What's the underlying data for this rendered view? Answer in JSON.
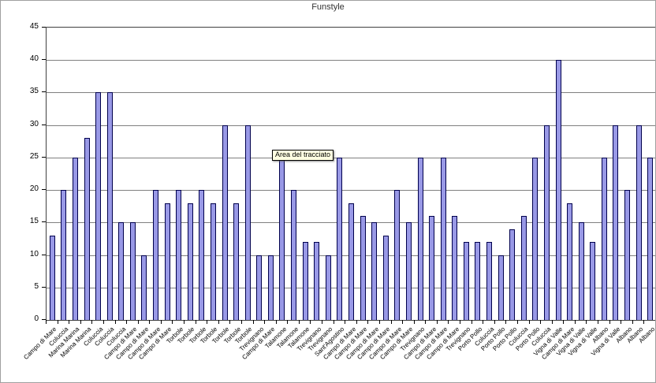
{
  "tooltip": {
    "text": "Area del tracciato"
  },
  "colors": {
    "bar_fill": "#9999e6",
    "bar_border": "#00004d",
    "gridline": "#808080",
    "axis": "#000000",
    "tooltip_bg": "#ffffe1",
    "background": "#ffffff"
  },
  "chart_data": {
    "type": "bar",
    "title": "Funstyle",
    "xlabel": "",
    "ylabel": "",
    "ylim": [
      0,
      45
    ],
    "y_ticks": [
      0,
      5,
      10,
      15,
      20,
      25,
      30,
      35,
      40,
      45
    ],
    "grid": true,
    "legend": "none",
    "categories": [
      "Campo di Mare",
      "Coluccia",
      "Marina Marina",
      "Marina Marina",
      "Coluccia",
      "Coluccia",
      "Coluccia",
      "Campo di Mare",
      "Campo di Mare",
      "Campo di Mare",
      "Campo di Mare",
      "Torbole",
      "Torbole",
      "Torbole",
      "Torbole",
      "Torbole",
      "Torbole",
      "Torbole",
      "Trevignano",
      "Campo di Mare",
      "Talamone",
      "Talamone",
      "Talamone",
      "Trevignano",
      "Trevignano",
      "Sant'Agostino",
      "Campo di Mare",
      "Campo di Mare",
      "Campo di Mare",
      "Campo di Mare",
      "Campo di Mare",
      "Campo di Mare",
      "Trevignano",
      "Campo di Mare",
      "Campo di Mare",
      "Campo di Mare",
      "Trevignano",
      "Porto Pollo",
      "Coluccia",
      "Porto Pollo",
      "Porto Pollo",
      "Coluccia",
      "Porto Pollo",
      "Coluccia",
      "Vigna di Valle",
      "Campo di Mare",
      "Vigna di Valle",
      "Vigna di Valle",
      "Albano",
      "Vigna di Valle",
      "Albano",
      "Albano",
      "Albano"
    ],
    "values": [
      13,
      20,
      25,
      28,
      35,
      35,
      15,
      15,
      10,
      20,
      18,
      20,
      18,
      20,
      18,
      30,
      18,
      30,
      10,
      10,
      25,
      20,
      12,
      12,
      10,
      25,
      18,
      16,
      15,
      13,
      20,
      15,
      25,
      16,
      25,
      16,
      12,
      12,
      12,
      10,
      14,
      16,
      25,
      30,
      40,
      18,
      15,
      12,
      25,
      30,
      20,
      30,
      25
    ]
  }
}
